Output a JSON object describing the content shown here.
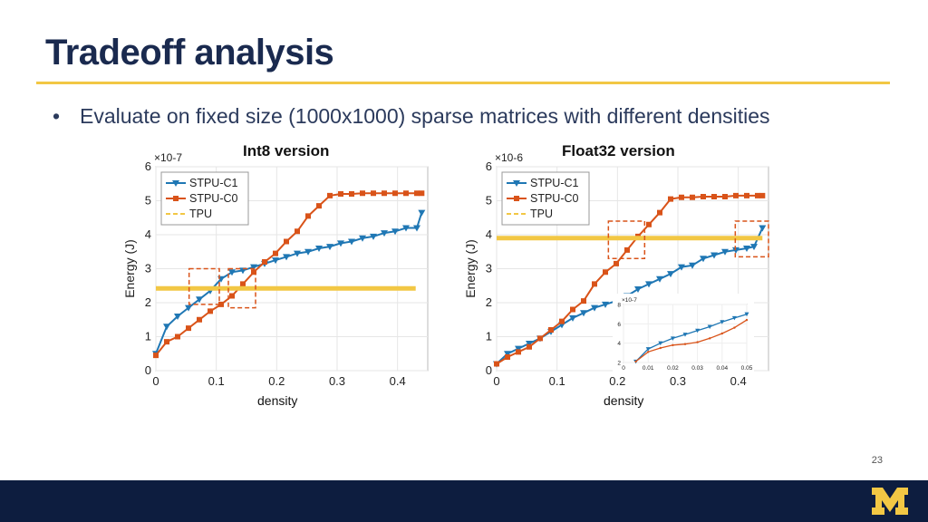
{
  "slide": {
    "title": "Tradeoff analysis",
    "bullet_marker": "•",
    "bullet_text": "Evaluate on fixed size (1000x1000) sparse matrices with different densities",
    "page_number": "23",
    "logo": "M",
    "colors": {
      "title": "#1a2a4f",
      "rule": "#f2c744",
      "footer": "#0d1d3f",
      "logo": "#f2c744"
    }
  },
  "chart_data": [
    {
      "type": "line",
      "title": "Int8 version",
      "xlabel": "density",
      "ylabel": "Energy (J)",
      "y_exponent": "×10^-7",
      "xlim": [
        0,
        0.45
      ],
      "ylim": [
        0,
        6
      ],
      "xticks": [
        "0",
        "0.1",
        "0.2",
        "0.3",
        "0.4"
      ],
      "yticks": [
        "0",
        "1",
        "2",
        "3",
        "4",
        "5",
        "6"
      ],
      "grid": true,
      "legend": "top-left",
      "series": [
        {
          "name": "STPU-C1",
          "color": "#1f77b4",
          "marker": "triangle-down",
          "x": [
            0,
            0.018,
            0.036,
            0.054,
            0.072,
            0.09,
            0.108,
            0.126,
            0.144,
            0.162,
            0.18,
            0.198,
            0.216,
            0.234,
            0.252,
            0.27,
            0.288,
            0.306,
            0.324,
            0.342,
            0.36,
            0.378,
            0.396,
            0.414,
            0.432,
            0.44
          ],
          "y": [
            0.5,
            1.3,
            1.6,
            1.85,
            2.1,
            2.35,
            2.7,
            2.9,
            2.95,
            3.05,
            3.15,
            3.25,
            3.35,
            3.45,
            3.5,
            3.6,
            3.65,
            3.75,
            3.8,
            3.9,
            3.95,
            4.05,
            4.1,
            4.2,
            4.2,
            4.65
          ]
        },
        {
          "name": "STPU-C0",
          "color": "#d95319",
          "marker": "square",
          "x": [
            0,
            0.018,
            0.036,
            0.054,
            0.072,
            0.09,
            0.108,
            0.126,
            0.144,
            0.162,
            0.18,
            0.198,
            0.216,
            0.234,
            0.252,
            0.27,
            0.288,
            0.306,
            0.324,
            0.342,
            0.36,
            0.378,
            0.396,
            0.414,
            0.432,
            0.44
          ],
          "y": [
            0.45,
            0.85,
            1.0,
            1.25,
            1.5,
            1.75,
            1.95,
            2.2,
            2.55,
            2.9,
            3.2,
            3.45,
            3.8,
            4.1,
            4.55,
            4.85,
            5.15,
            5.2,
            5.2,
            5.22,
            5.22,
            5.22,
            5.22,
            5.22,
            5.22,
            5.22
          ]
        },
        {
          "name": "TPU",
          "color": "#f2c744",
          "marker": "none",
          "x": [
            0,
            0.43
          ],
          "y": [
            2.42,
            2.42
          ]
        }
      ],
      "annotations": [
        "dashed box near density 0.06-0.11",
        "dashed box near density 0.12-0.16"
      ]
    },
    {
      "type": "line",
      "title": "Float32 version",
      "xlabel": "density",
      "ylabel": "Energy (J)",
      "y_exponent": "×10^-6",
      "xlim": [
        0,
        0.45
      ],
      "ylim": [
        0,
        6
      ],
      "xticks": [
        "0",
        "0.1",
        "0.2",
        "0.3",
        "0.4"
      ],
      "yticks": [
        "0",
        "1",
        "2",
        "3",
        "4",
        "5",
        "6"
      ],
      "grid": true,
      "legend": "top-left",
      "series": [
        {
          "name": "STPU-C1",
          "color": "#1f77b4",
          "marker": "triangle-down",
          "x": [
            0,
            0.018,
            0.036,
            0.054,
            0.072,
            0.09,
            0.108,
            0.126,
            0.144,
            0.162,
            0.18,
            0.198,
            0.216,
            0.234,
            0.252,
            0.27,
            0.288,
            0.306,
            0.324,
            0.342,
            0.36,
            0.378,
            0.396,
            0.414,
            0.426,
            0.44
          ],
          "y": [
            0.2,
            0.5,
            0.65,
            0.8,
            0.95,
            1.15,
            1.35,
            1.55,
            1.7,
            1.85,
            1.95,
            2.05,
            2.2,
            2.4,
            2.55,
            2.7,
            2.85,
            3.05,
            3.1,
            3.3,
            3.4,
            3.5,
            3.55,
            3.6,
            3.65,
            4.2
          ]
        },
        {
          "name": "STPU-C0",
          "color": "#d95319",
          "marker": "square",
          "x": [
            0,
            0.018,
            0.036,
            0.054,
            0.072,
            0.09,
            0.108,
            0.126,
            0.144,
            0.162,
            0.18,
            0.198,
            0.216,
            0.234,
            0.252,
            0.27,
            0.288,
            0.306,
            0.324,
            0.342,
            0.36,
            0.378,
            0.396,
            0.414,
            0.432,
            0.44
          ],
          "y": [
            0.2,
            0.4,
            0.55,
            0.7,
            0.95,
            1.2,
            1.45,
            1.8,
            2.05,
            2.55,
            2.9,
            3.15,
            3.55,
            3.95,
            4.3,
            4.65,
            5.05,
            5.1,
            5.1,
            5.12,
            5.12,
            5.12,
            5.15,
            5.15,
            5.15,
            5.15
          ]
        },
        {
          "name": "TPU",
          "color": "#f2c744",
          "marker": "none",
          "x": [
            0,
            0.44
          ],
          "y": [
            3.9,
            3.9
          ]
        }
      ],
      "inset": {
        "y_exponent": "×10^-7",
        "xlim": [
          0,
          0.05
        ],
        "ylim": [
          2,
          8
        ],
        "xticks": [
          "0",
          "0.01",
          "0.02",
          "0.03",
          "0.04",
          "0.05"
        ],
        "yticks": [
          "2",
          "4",
          "6",
          "8"
        ],
        "series": [
          {
            "name": "STPU-C1",
            "color": "#1f77b4",
            "x": [
              0.005,
              0.01,
              0.015,
              0.02,
              0.025,
              0.03,
              0.035,
              0.04,
              0.045,
              0.05
            ],
            "y": [
              2.1,
              3.4,
              4.0,
              4.5,
              4.9,
              5.3,
              5.7,
              6.2,
              6.6,
              7.0
            ]
          },
          {
            "name": "STPU-C0",
            "color": "#d95319",
            "x": [
              0.005,
              0.01,
              0.015,
              0.02,
              0.025,
              0.03,
              0.035,
              0.04,
              0.045,
              0.05
            ],
            "y": [
              2.1,
              3.1,
              3.5,
              3.8,
              3.9,
              4.1,
              4.5,
              5.0,
              5.6,
              6.4
            ]
          }
        ]
      },
      "annotations": [
        "dashed box near density 0.18-0.24",
        "dashed box near density 0.39-0.45"
      ]
    }
  ]
}
